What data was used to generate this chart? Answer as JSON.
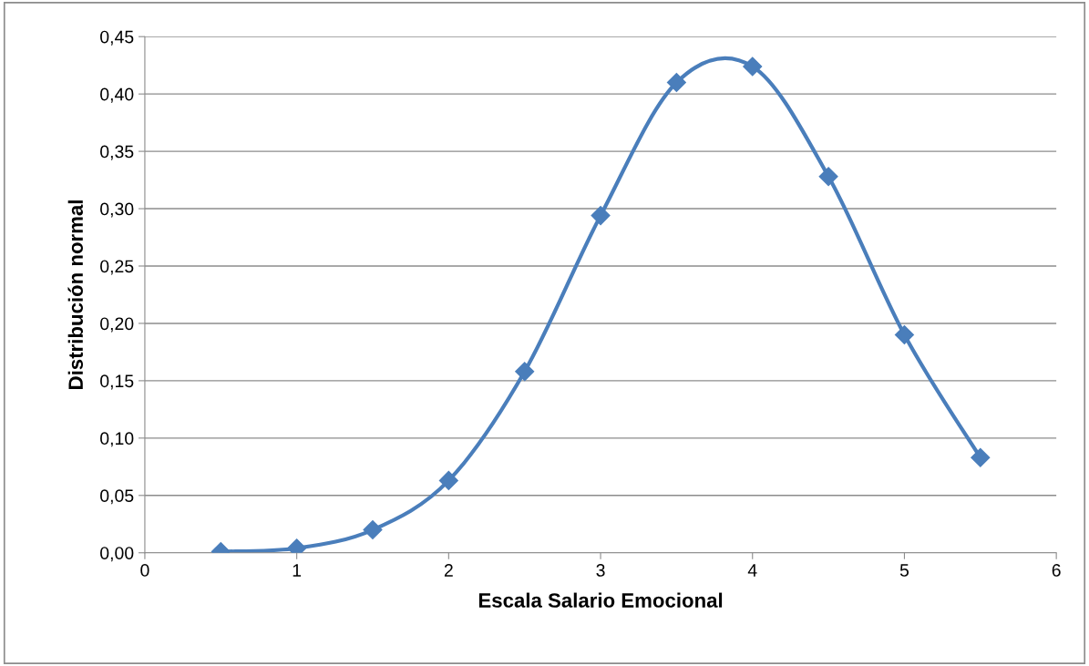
{
  "chart_data": {
    "type": "line",
    "xlabel": "Escala Salario Emocional",
    "ylabel": "Distribución normal",
    "x": [
      0.5,
      1,
      1.5,
      2,
      2.5,
      3,
      3.5,
      4,
      4.5,
      5,
      5.5
    ],
    "series": [
      {
        "color": "#4a7ebb",
        "values": [
          0.001,
          0.004,
          0.02,
          0.063,
          0.158,
          0.294,
          0.41,
          0.424,
          0.328,
          0.19,
          0.083
        ]
      }
    ],
    "xlim": [
      0,
      6
    ],
    "xticks": [
      0,
      1,
      2,
      3,
      4,
      5,
      6
    ],
    "ylim": [
      0,
      0.45
    ],
    "yticks": [
      {
        "value": 0,
        "label": "0,00"
      },
      {
        "value": 0.05,
        "label": "0,05"
      },
      {
        "value": 0.1,
        "label": "0,10"
      },
      {
        "value": 0.15,
        "label": "0,15"
      },
      {
        "value": 0.2,
        "label": "0,20"
      },
      {
        "value": 0.25,
        "label": "0,25"
      },
      {
        "value": 0.3,
        "label": "0,30"
      },
      {
        "value": 0.35,
        "label": "0,35"
      },
      {
        "value": 0.4,
        "label": "0,40"
      },
      {
        "value": 0.45,
        "label": "0,45"
      }
    ],
    "grid": "y",
    "marker": "diamond",
    "line_style": "solid"
  }
}
